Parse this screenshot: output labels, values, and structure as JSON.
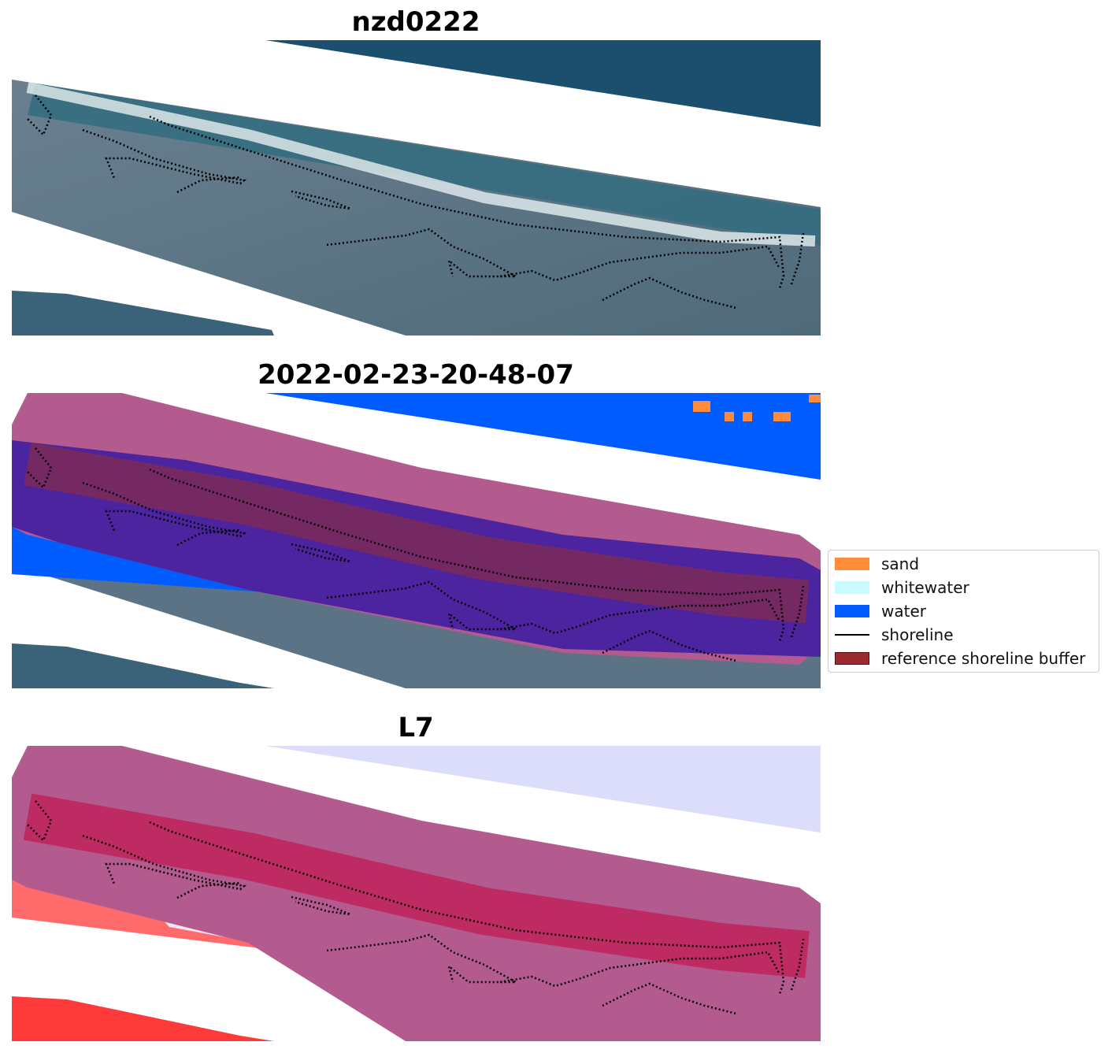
{
  "panels": [
    {
      "title": "nzd0222"
    },
    {
      "title": "2022-02-23-20-48-07"
    },
    {
      "title": "L7"
    }
  ],
  "legend": {
    "items": [
      {
        "label": "sand",
        "color": "#ff8c3b",
        "kind": "patch"
      },
      {
        "label": "whitewater",
        "color": "#c8fbff",
        "kind": "patch"
      },
      {
        "label": "water",
        "color": "#005cff",
        "kind": "patch"
      },
      {
        "label": "shoreline",
        "color": "#000000",
        "kind": "line"
      },
      {
        "label": "reference shoreline buffer",
        "color": "#9b2a2f",
        "kind": "patch"
      }
    ]
  },
  "colors": {
    "deep_water": "#1c4f6e",
    "nearshore": "#2f6e82",
    "land": "#5c7386",
    "surf": "#dde8ea",
    "buffer": "#b35a8f",
    "buffer_core": "#7a2a5c",
    "classified_water": "#005cff",
    "land_class": "#4c249f",
    "l7_water": "#dcdcfb",
    "l7_land": "#ff3a3a"
  }
}
